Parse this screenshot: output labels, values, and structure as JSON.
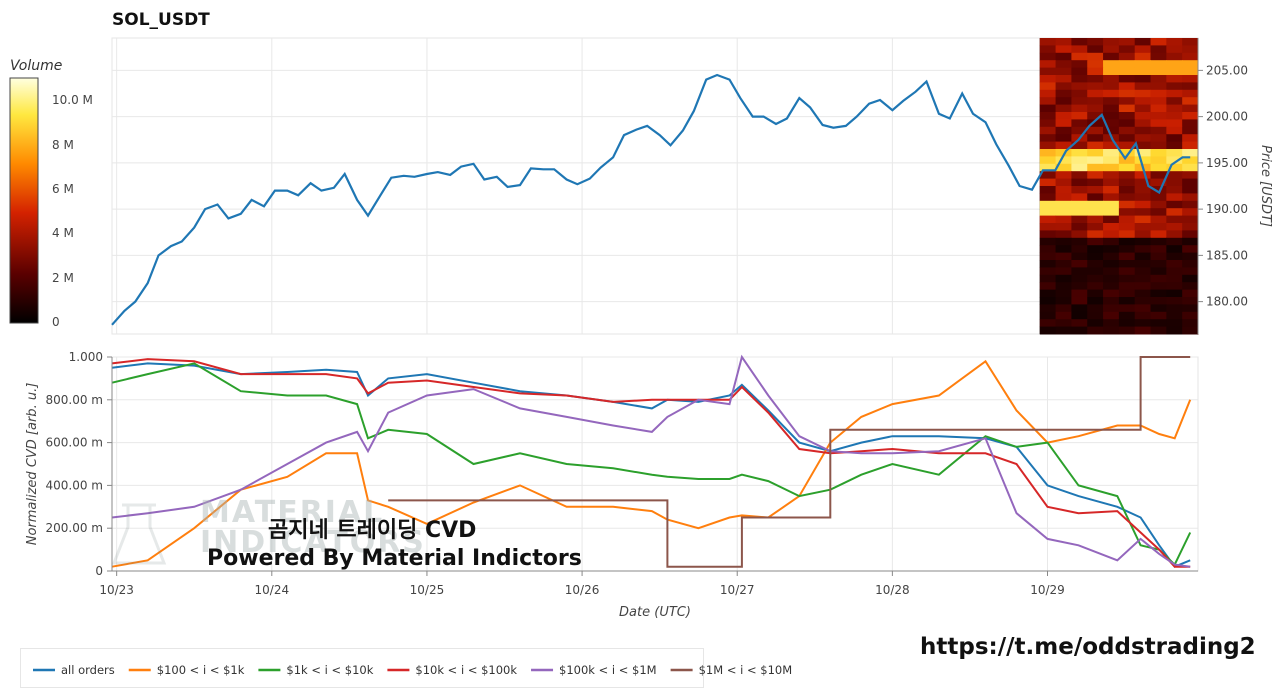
{
  "title": "SOL_USDT",
  "colorbar": {
    "title": "Volume",
    "ticks": [
      "10.0 M",
      "8 M",
      "6 M",
      "4 M",
      "2 M",
      "0"
    ]
  },
  "overlay": {
    "line1": "곰지네 트레이딩 CVD",
    "line2": "Powered By Material Indictors",
    "watermark": "MATERIAL INDICATORS"
  },
  "link": "https://t.me/oddstrading2",
  "colors": {
    "price": "#1f77b4",
    "s100_1k": "#ff7f0e",
    "s1k_10k": "#2ca02c",
    "s10k_100k": "#d62728",
    "s100k_1m": "#9467bd",
    "s1m_10m": "#8c564b"
  },
  "chart_data": [
    {
      "type": "line",
      "title": "SOL_USDT",
      "ylabel": "Price [USDT]",
      "ylim": [
        176.5,
        208.5
      ],
      "yticks": [
        "205.00",
        "200.00",
        "195.00",
        "190.00",
        "185.00",
        "180.00"
      ],
      "xlim": [
        22.97,
        29.97
      ],
      "x": [
        22.97,
        23.05,
        23.12,
        23.2,
        23.27,
        23.35,
        23.42,
        23.5,
        23.57,
        23.65,
        23.72,
        23.8,
        23.87,
        23.95,
        24.02,
        24.1,
        24.17,
        24.25,
        24.32,
        24.4,
        24.47,
        24.55,
        24.62,
        24.7,
        24.77,
        24.85,
        24.92,
        25.0,
        25.07,
        25.15,
        25.22,
        25.3,
        25.37,
        25.45,
        25.52,
        25.6,
        25.67,
        25.75,
        25.82,
        25.9,
        25.97,
        26.05,
        26.12,
        26.2,
        26.27,
        26.35,
        26.42,
        26.5,
        26.57,
        26.65,
        26.72,
        26.8,
        26.87,
        26.95,
        27.02,
        27.1,
        27.17,
        27.25,
        27.32,
        27.4,
        27.47,
        27.55,
        27.62,
        27.7,
        27.77,
        27.85,
        27.92,
        28.0,
        28.07,
        28.15,
        28.22,
        28.3,
        28.37,
        28.45,
        28.52,
        28.6,
        28.67,
        28.75,
        28.82,
        28.9,
        28.97,
        29.05,
        29.12,
        29.2,
        29.27,
        29.35,
        29.42,
        29.5,
        29.57,
        29.65,
        29.72,
        29.8,
        29.87,
        29.92
      ],
      "series": [
        {
          "values": [
            177.5,
            179,
            180,
            182,
            185,
            186,
            186.5,
            188,
            190,
            190.5,
            189,
            189.5,
            191,
            190.3,
            192,
            192,
            191.5,
            192.8,
            192,
            192.3,
            193.8,
            191,
            189.3,
            191.5,
            193.4,
            193.6,
            193.5,
            193.8,
            194,
            193.7,
            194.6,
            194.9,
            193.2,
            193.5,
            192.4,
            192.6,
            194.4,
            194.3,
            194.3,
            193.2,
            192.7,
            193.3,
            194.5,
            195.6,
            198,
            198.6,
            199,
            198,
            196.9,
            198.5,
            200.6,
            204,
            204.5,
            204,
            202,
            200,
            200,
            199.2,
            199.8,
            202,
            201,
            199.1,
            198.8,
            199,
            200,
            201.4,
            201.8,
            200.7,
            201.7,
            202.7,
            203.8,
            200.3,
            199.8,
            202.5,
            200.3,
            199.4,
            197,
            194.7,
            192.5,
            192.1,
            194.2,
            194.2,
            196.3,
            197.5,
            199,
            200.2,
            197.5,
            195.5,
            197.1,
            192.5,
            191.8,
            194.8,
            195.6,
            195.6
          ]
        }
      ]
    },
    {
      "type": "line",
      "ylabel": "Normalized CVD [arb. u.]",
      "xlabel": "Date (UTC)",
      "ylim": [
        0,
        1.0
      ],
      "yticks": [
        "1.000",
        "800.00 m",
        "600.00 m",
        "400.00 m",
        "200.00 m",
        "0"
      ],
      "xlim": [
        22.97,
        29.97
      ],
      "xticks": [
        "10/23",
        "10/24",
        "10/25",
        "10/26",
        "10/27",
        "10/28",
        "10/29"
      ],
      "x": [
        22.97,
        23.2,
        23.5,
        23.8,
        24.1,
        24.35,
        24.55,
        24.62,
        24.75,
        25.0,
        25.3,
        25.6,
        25.9,
        26.2,
        26.45,
        26.55,
        26.75,
        26.95,
        27.03,
        27.2,
        27.4,
        27.6,
        27.8,
        28.0,
        28.3,
        28.6,
        28.8,
        29.0,
        29.2,
        29.45,
        29.6,
        29.72,
        29.82,
        29.92
      ],
      "series": [
        {
          "name": "all orders",
          "values": [
            0.95,
            0.97,
            0.96,
            0.92,
            0.93,
            0.94,
            0.93,
            0.82,
            0.9,
            0.92,
            0.88,
            0.84,
            0.82,
            0.79,
            0.76,
            0.8,
            0.79,
            0.82,
            0.87,
            0.75,
            0.6,
            0.56,
            0.6,
            0.63,
            0.63,
            0.62,
            0.58,
            0.4,
            0.35,
            0.3,
            0.25,
            0.12,
            0.02,
            0.05
          ]
        },
        {
          "name": "$100 < i < $1k",
          "values": [
            0.02,
            0.05,
            0.2,
            0.38,
            0.44,
            0.55,
            0.55,
            0.33,
            0.3,
            0.22,
            0.32,
            0.4,
            0.3,
            0.3,
            0.28,
            0.24,
            0.2,
            0.25,
            0.26,
            0.25,
            0.35,
            0.6,
            0.72,
            0.78,
            0.82,
            0.98,
            0.75,
            0.6,
            0.63,
            0.68,
            0.68,
            0.64,
            0.62,
            0.8
          ]
        },
        {
          "name": "$1k < i < $10k",
          "values": [
            0.88,
            0.92,
            0.97,
            0.84,
            0.82,
            0.82,
            0.78,
            0.62,
            0.66,
            0.64,
            0.5,
            0.55,
            0.5,
            0.48,
            0.45,
            0.44,
            0.43,
            0.43,
            0.45,
            0.42,
            0.35,
            0.38,
            0.45,
            0.5,
            0.45,
            0.63,
            0.58,
            0.6,
            0.4,
            0.35,
            0.12,
            0.1,
            0.03,
            0.18
          ]
        },
        {
          "name": "$10k < i < $100k",
          "values": [
            0.97,
            0.99,
            0.98,
            0.92,
            0.92,
            0.92,
            0.9,
            0.83,
            0.88,
            0.89,
            0.86,
            0.83,
            0.82,
            0.79,
            0.8,
            0.8,
            0.8,
            0.8,
            0.86,
            0.74,
            0.57,
            0.55,
            0.56,
            0.57,
            0.55,
            0.55,
            0.5,
            0.3,
            0.27,
            0.28,
            0.18,
            0.1,
            0.02,
            0.02
          ]
        },
        {
          "name": "$100k < i < $1M",
          "values": [
            0.25,
            0.27,
            0.3,
            0.38,
            0.5,
            0.6,
            0.65,
            0.56,
            0.74,
            0.82,
            0.85,
            0.76,
            0.72,
            0.68,
            0.65,
            0.72,
            0.8,
            0.78,
            1.0,
            0.82,
            0.63,
            0.56,
            0.55,
            0.55,
            0.56,
            0.62,
            0.27,
            0.15,
            0.12,
            0.05,
            0.15,
            0.08,
            0.03,
            0.02
          ]
        },
        {
          "name": "$1M < i < $10M",
          "values": [
            null,
            null,
            null,
            null,
            null,
            null,
            null,
            null,
            0.33,
            0.33,
            0.33,
            0.33,
            0.33,
            0.33,
            0.33,
            0.02,
            0.02,
            0.02,
            0.25,
            0.25,
            0.25,
            0.66,
            0.66,
            0.66,
            0.66,
            0.66,
            0.66,
            0.66,
            0.66,
            0.66,
            1.0,
            1.0,
            1.0,
            1.0
          ]
        }
      ]
    }
  ]
}
